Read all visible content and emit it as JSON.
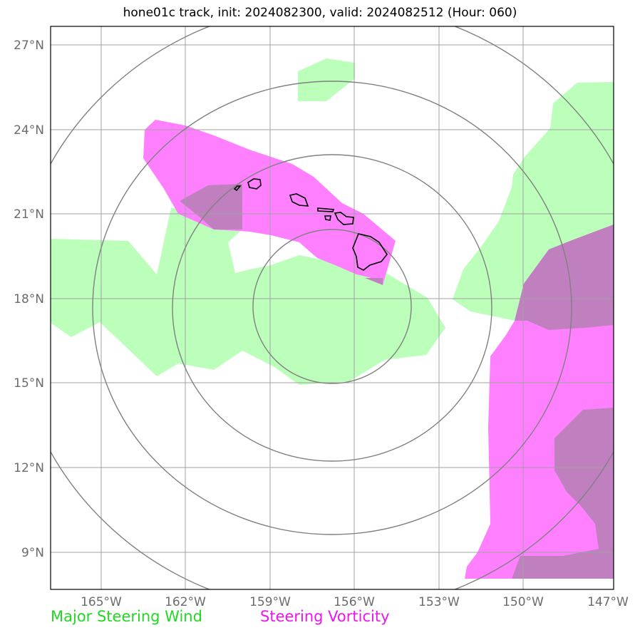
{
  "title": "hone01c track, init: 2024082300, valid: 2024082512 (Hour: 060)",
  "legend": {
    "wind_label": "Major Steering Wind",
    "vorticity_label": "Steering Vorticity"
  },
  "colors": {
    "wind": "#bbffbb",
    "vorticity": "#ff80ff",
    "overlap": "#c080c0",
    "wind_text": "#22d822",
    "vorticity_text": "#ee14ee",
    "grid": "#a0a0a0",
    "range_ring": "#808080",
    "coast": "#000000"
  },
  "map": {
    "lon_range": [
      -166.75,
      -147
    ],
    "lat_range": [
      7.75,
      27.75
    ],
    "lat_labels": [
      "27°N",
      "24°N",
      "21°N",
      "18°N",
      "15°N",
      "12°N",
      "9°N"
    ],
    "lon_labels": [
      "165°W",
      "162°W",
      "159°W",
      "156°W",
      "153°W",
      "150°W",
      "147°W"
    ],
    "ring_center": {
      "lon": -157.0,
      "lat": 18.0
    },
    "ring_radii_deg": [
      2.75,
      5.75,
      8.5,
      11.25
    ]
  }
}
